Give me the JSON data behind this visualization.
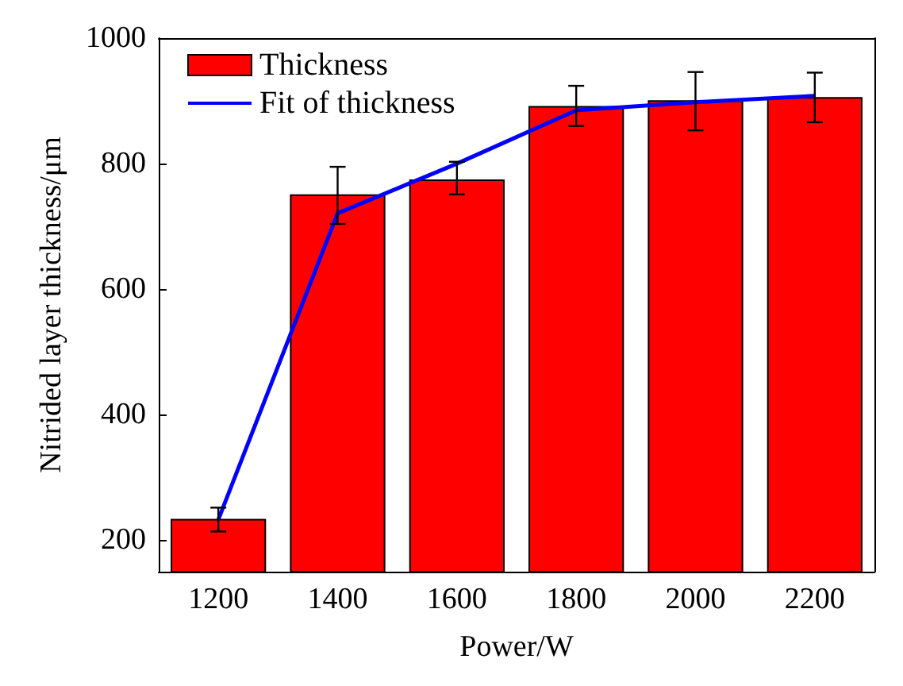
{
  "chart_data": {
    "type": "bar",
    "xlabel": "Power/W",
    "ylabel": "Nitrided layer thickness/μm",
    "categories": [
      "1200",
      "1400",
      "1600",
      "1800",
      "2000",
      "2200"
    ],
    "series": [
      {
        "name": "Thickness",
        "color": "#ff0000",
        "values": [
          234,
          751,
          775,
          892,
          901,
          906
        ],
        "errors": [
          [
            214,
            252
          ],
          [
            704,
            795
          ],
          [
            751,
            803
          ],
          [
            860,
            924
          ],
          [
            853,
            946
          ],
          [
            866,
            945
          ]
        ]
      },
      {
        "name": "Fit of thickness",
        "type": "line",
        "color": "#0000ff",
        "values": [
          233,
          721,
          800,
          885,
          898,
          908
        ],
        "marker": "none"
      }
    ],
    "ylim": [
      150,
      1000
    ],
    "yticks": [
      200,
      400,
      600,
      800,
      1000
    ],
    "grid": false,
    "legend": "top left"
  }
}
